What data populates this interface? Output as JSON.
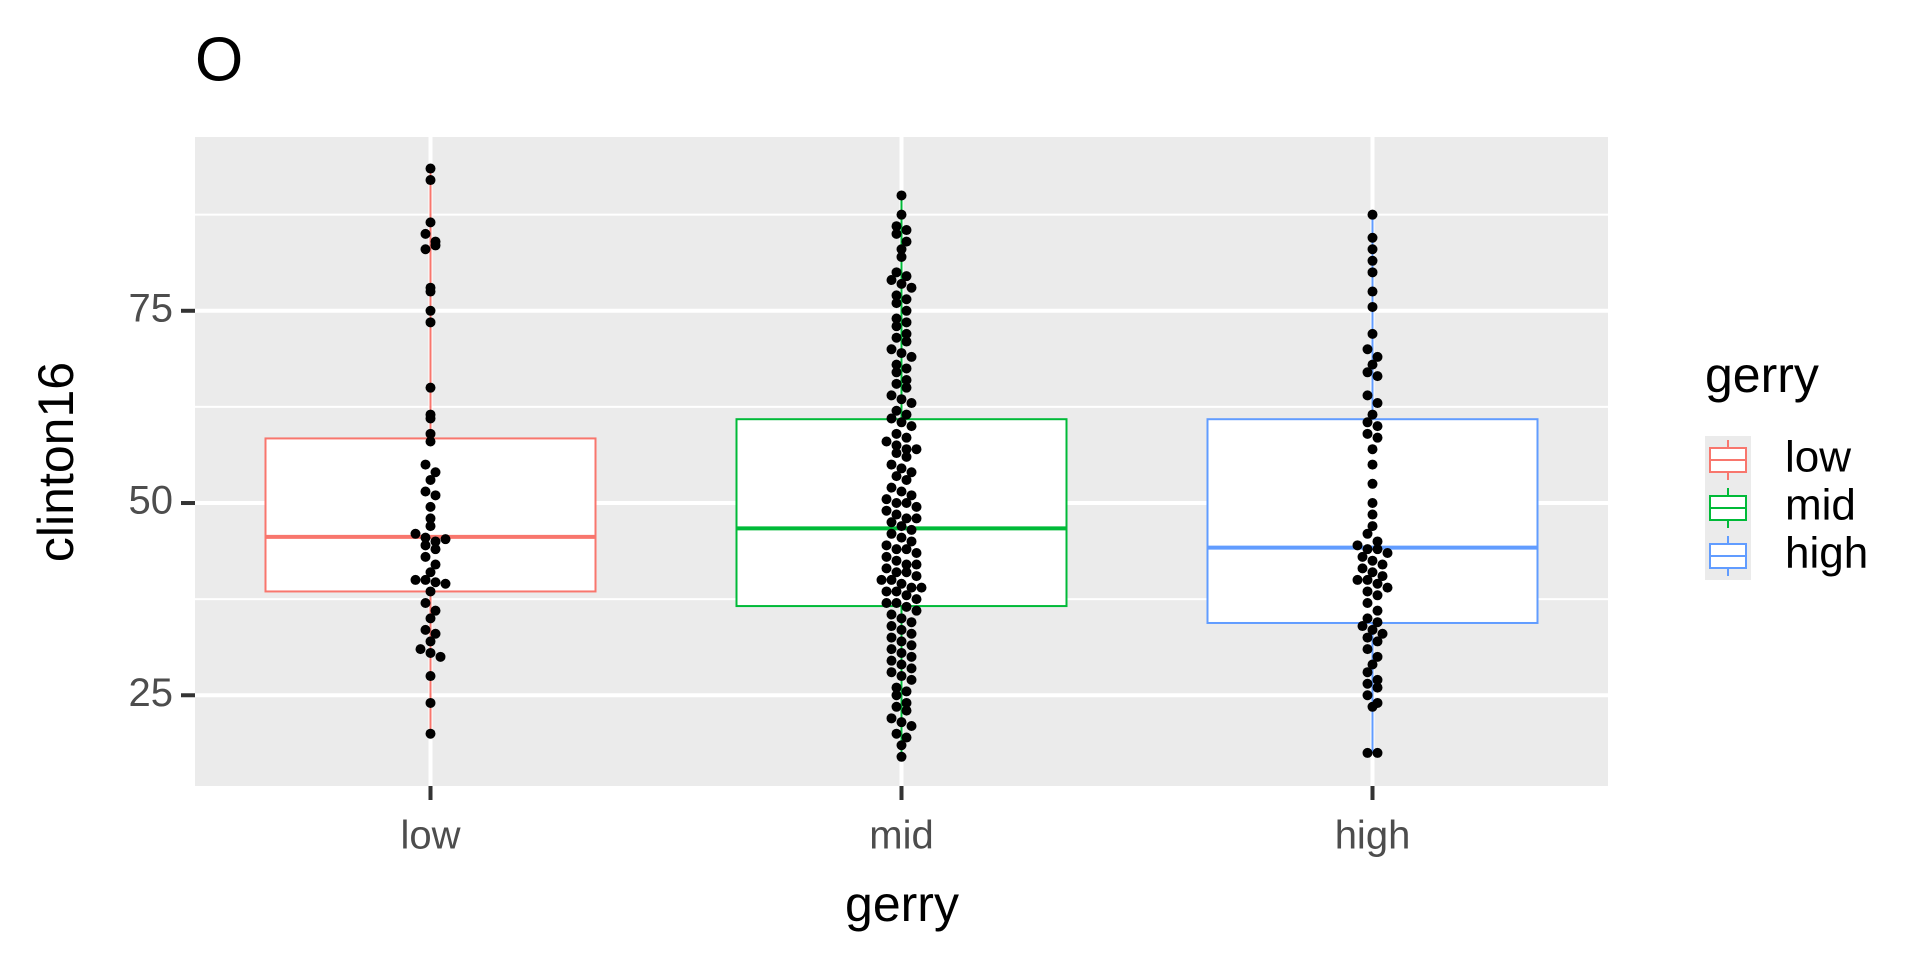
{
  "chart_data": {
    "type": "box",
    "title": "O",
    "xlabel": "gerry",
    "ylabel": "clinton16",
    "legend_title": "gerry",
    "legend": "right",
    "grid": true,
    "categories": [
      "low",
      "mid",
      "high"
    ],
    "ylim": [
      13.2,
      97.6
    ],
    "yticks": [
      25,
      50,
      75
    ],
    "yminor": [
      37.5,
      62.5,
      87.5
    ],
    "point_color": "#000000",
    "series": [
      {
        "name": "low",
        "color": "#f8766d",
        "min": 20,
        "q1": 38.5,
        "median": 45.6,
        "q3": 58.4,
        "max": 93.5,
        "points": [
          93.5,
          92,
          86.5,
          85,
          84,
          83,
          83.5,
          78,
          77.5,
          75,
          73.5,
          65,
          61.5,
          61,
          59,
          58,
          55,
          54,
          53,
          51.5,
          51,
          49.5,
          48,
          47,
          46,
          45.5,
          45,
          45.3,
          44.5,
          44,
          43,
          42,
          41,
          40,
          40,
          39.7,
          39.5,
          38.5,
          37,
          36,
          35,
          33.5,
          33,
          32,
          31,
          30.5,
          30,
          27.5,
          24,
          20
        ]
      },
      {
        "name": "mid",
        "color": "#00ba38",
        "min": 17,
        "q1": 36.6,
        "median": 46.7,
        "q3": 60.9,
        "max": 90,
        "points": [
          90,
          87.5,
          86,
          85.5,
          85,
          84,
          83,
          82,
          80,
          79.5,
          79,
          78.5,
          78,
          77,
          76.5,
          76,
          75,
          74,
          73.5,
          73,
          72,
          71.5,
          71,
          70,
          69.5,
          69,
          68,
          67.5,
          67,
          66,
          65.5,
          65,
          64,
          63.5,
          63,
          62,
          61.5,
          61,
          60.5,
          60,
          59,
          58.5,
          58,
          57.5,
          57,
          57,
          56.5,
          56,
          55,
          54.5,
          54,
          53.5,
          53,
          52,
          51.5,
          51,
          50.5,
          50,
          50,
          49.5,
          49,
          48.5,
          48,
          48,
          47.5,
          47,
          46.5,
          46,
          45.5,
          45,
          44.5,
          44,
          44,
          43.5,
          43,
          42.5,
          42,
          42,
          41.5,
          41,
          41,
          40.5,
          40,
          40,
          39.5,
          39,
          39,
          38.5,
          38.5,
          38,
          37.5,
          37,
          37,
          36.5,
          36,
          35.5,
          35,
          34.5,
          34,
          33.5,
          33,
          32.5,
          32,
          31.5,
          31,
          30.5,
          30,
          29.5,
          29,
          28.5,
          28,
          27.5,
          27,
          26,
          25.5,
          25,
          24,
          23.5,
          23,
          22,
          21.5,
          21,
          20,
          19.5,
          18.5,
          17
        ]
      },
      {
        "name": "high",
        "color": "#619cff",
        "min": 17.5,
        "q1": 34.4,
        "median": 44.2,
        "q3": 60.9,
        "max": 87.5,
        "points": [
          87.5,
          84.5,
          83,
          81.5,
          80,
          77.5,
          75.5,
          72,
          70,
          69,
          68,
          67,
          66.5,
          64,
          63,
          61.5,
          60.5,
          60,
          59,
          58.5,
          57,
          55,
          52.5,
          50,
          48.5,
          47,
          46,
          45,
          44.5,
          44,
          44,
          43.5,
          43,
          42.5,
          42,
          41.5,
          41,
          40.5,
          40,
          40,
          39.5,
          39,
          38.5,
          38,
          37,
          36,
          35,
          34.5,
          34,
          33.5,
          33,
          32.5,
          32,
          31,
          30,
          29,
          28,
          27,
          26.5,
          26,
          25,
          24,
          23.5,
          17.5,
          17.5
        ]
      }
    ]
  }
}
